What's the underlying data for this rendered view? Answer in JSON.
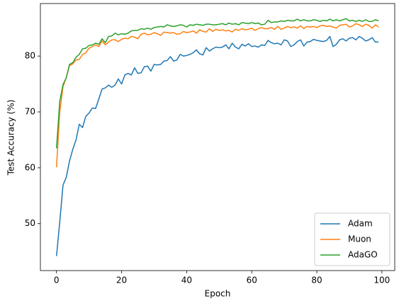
{
  "chart_data": {
    "type": "line",
    "xlabel": "Epoch",
    "ylabel": "Test Accuracy (%)",
    "x": [
      0,
      1,
      2,
      3,
      4,
      5,
      6,
      7,
      8,
      9,
      10,
      11,
      12,
      13,
      14,
      15,
      16,
      17,
      18,
      19,
      20,
      21,
      22,
      23,
      24,
      25,
      26,
      27,
      28,
      29,
      30,
      31,
      32,
      33,
      34,
      35,
      36,
      37,
      38,
      39,
      40,
      41,
      42,
      43,
      44,
      45,
      46,
      47,
      48,
      49,
      50,
      51,
      52,
      53,
      54,
      55,
      56,
      57,
      58,
      59,
      60,
      61,
      62,
      63,
      64,
      65,
      66,
      67,
      68,
      69,
      70,
      71,
      72,
      73,
      74,
      75,
      76,
      77,
      78,
      79,
      80,
      81,
      82,
      83,
      84,
      85,
      86,
      87,
      88,
      89,
      90,
      91,
      92,
      93,
      94,
      95,
      96,
      97,
      98,
      99
    ],
    "series": [
      {
        "name": "Adam",
        "color": "#1f77b4",
        "values": [
          44.2,
          50.3,
          56.9,
          58.3,
          61.2,
          63.3,
          65.0,
          67.8,
          67.2,
          69.2,
          69.8,
          70.7,
          70.6,
          72.3,
          74.1,
          74.3,
          74.8,
          74.4,
          74.8,
          75.9,
          75.0,
          76.6,
          76.9,
          76.6,
          77.9,
          76.9,
          77.0,
          78.1,
          78.2,
          77.3,
          78.5,
          78.4,
          78.5,
          79.1,
          79.2,
          79.9,
          79.1,
          79.3,
          80.3,
          80.0,
          80.1,
          80.3,
          80.6,
          81.1,
          80.4,
          80.2,
          81.5,
          80.9,
          81.3,
          81.6,
          81.5,
          81.6,
          82.0,
          81.3,
          82.3,
          81.6,
          81.3,
          82.1,
          81.8,
          82.2,
          81.7,
          81.8,
          81.6,
          82.0,
          81.9,
          82.8,
          82.4,
          82.2,
          82.3,
          82.0,
          82.9,
          82.7,
          81.7,
          82.0,
          82.6,
          82.9,
          81.8,
          82.5,
          82.6,
          83.0,
          82.8,
          82.7,
          82.6,
          82.8,
          83.5,
          81.7,
          82.1,
          82.9,
          83.1,
          82.7,
          83.2,
          83.3,
          82.9,
          83.5,
          83.2,
          82.7,
          82.9,
          83.3,
          82.5,
          82.5
        ]
      },
      {
        "name": "Muon",
        "color": "#ff7f0e",
        "values": [
          60.1,
          70.0,
          74.5,
          76.2,
          78.3,
          78.6,
          79.3,
          79.4,
          80.3,
          80.6,
          81.4,
          81.7,
          82.0,
          81.7,
          82.7,
          82.0,
          82.5,
          82.9,
          82.9,
          82.6,
          83.0,
          83.2,
          83.1,
          83.5,
          83.4,
          83.1,
          83.9,
          84.1,
          83.8,
          83.9,
          84.2,
          84.0,
          83.7,
          84.3,
          84.2,
          84.1,
          84.2,
          83.9,
          84.0,
          84.4,
          84.2,
          84.3,
          84.5,
          84.1,
          84.7,
          84.4,
          84.3,
          84.9,
          84.4,
          84.8,
          84.6,
          84.7,
          84.5,
          84.6,
          84.3,
          84.8,
          84.6,
          84.9,
          84.7,
          84.8,
          85.0,
          84.6,
          84.9,
          85.1,
          84.9,
          84.9,
          85.1,
          84.8,
          85.3,
          84.8,
          85.0,
          85.3,
          85.1,
          85.2,
          85.0,
          85.4,
          84.9,
          85.3,
          85.2,
          85.3,
          85.1,
          85.4,
          85.5,
          85.3,
          85.4,
          85.2,
          85.0,
          85.5,
          85.6,
          85.7,
          85.2,
          85.4,
          85.8,
          85.6,
          85.3,
          85.7,
          85.5,
          85.0,
          85.6,
          85.2
        ]
      },
      {
        "name": "AdaGO",
        "color": "#2ca02c",
        "values": [
          63.5,
          71.9,
          74.9,
          76.1,
          78.5,
          78.8,
          79.8,
          80.3,
          81.3,
          81.4,
          81.9,
          82.0,
          82.3,
          82.1,
          83.1,
          82.4,
          83.5,
          83.6,
          84.1,
          83.8,
          84.0,
          83.9,
          84.1,
          84.5,
          84.6,
          84.6,
          84.9,
          84.8,
          85.0,
          84.8,
          85.1,
          85.2,
          85.3,
          85.2,
          85.6,
          85.4,
          85.3,
          85.4,
          85.6,
          85.5,
          85.2,
          85.6,
          85.5,
          85.7,
          85.6,
          85.5,
          85.7,
          85.7,
          85.6,
          85.6,
          85.7,
          85.8,
          85.6,
          85.9,
          85.7,
          85.8,
          85.6,
          86.0,
          85.9,
          85.8,
          86.0,
          85.8,
          85.9,
          85.6,
          85.7,
          86.4,
          86.0,
          86.1,
          86.1,
          86.3,
          86.2,
          86.4,
          86.3,
          86.3,
          86.6,
          86.3,
          86.5,
          86.3,
          86.3,
          86.5,
          86.4,
          86.2,
          86.4,
          86.3,
          86.6,
          86.3,
          86.5,
          86.3,
          86.5,
          86.7,
          86.3,
          86.4,
          86.2,
          86.4,
          86.2,
          86.5,
          86.2,
          86.2,
          86.5,
          86.3
        ]
      }
    ],
    "xlim": [
      -4.95,
      103.95
    ],
    "ylim": [
      41.6,
      89.4
    ],
    "xticks": [
      0,
      20,
      40,
      60,
      80,
      100
    ],
    "yticks": [
      50,
      60,
      70,
      80
    ],
    "legend": "lower right"
  }
}
